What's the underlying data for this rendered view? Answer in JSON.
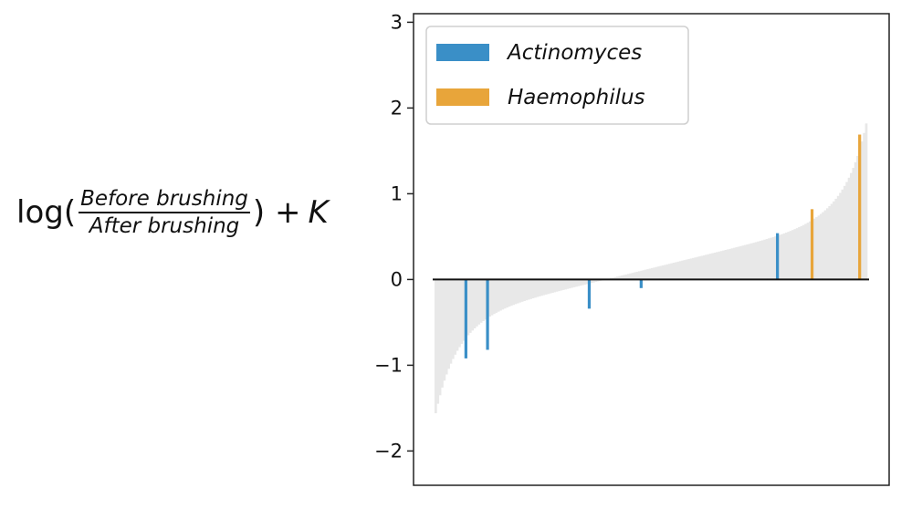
{
  "chart_data": {
    "type": "bar",
    "ylabel": {
      "prefix": "log(",
      "numerator": "Before brushing",
      "denominator": "After brushing",
      "suffix": ") + ",
      "constant": "K"
    },
    "ylim": [
      -2.4,
      3.1
    ],
    "yticks": [
      {
        "value": 3,
        "label": "3"
      },
      {
        "value": 2,
        "label": "2"
      },
      {
        "value": 1,
        "label": "1"
      },
      {
        "value": 0,
        "label": "0"
      },
      {
        "value": -1,
        "label": "−1"
      },
      {
        "value": -2,
        "label": "−2"
      }
    ],
    "grid": false,
    "legend_position": "top-left",
    "background_series": {
      "color": "#e8e8e8",
      "count": 200,
      "range": [
        -2.2,
        2.9
      ]
    },
    "series": [
      {
        "name": "Actinomyces",
        "color": "#3a8fc7",
        "points": [
          {
            "rank": 14,
            "value": -0.92
          },
          {
            "rank": 24,
            "value": -0.82
          },
          {
            "rank": 71,
            "value": -0.34
          },
          {
            "rank": 95,
            "value": -0.1
          },
          {
            "rank": 158,
            "value": 0.54
          }
        ]
      },
      {
        "name": "Haemophilus",
        "color": "#e8a53a",
        "points": [
          {
            "rank": 174,
            "value": 0.82
          },
          {
            "rank": 196,
            "value": 1.69
          }
        ]
      }
    ]
  }
}
